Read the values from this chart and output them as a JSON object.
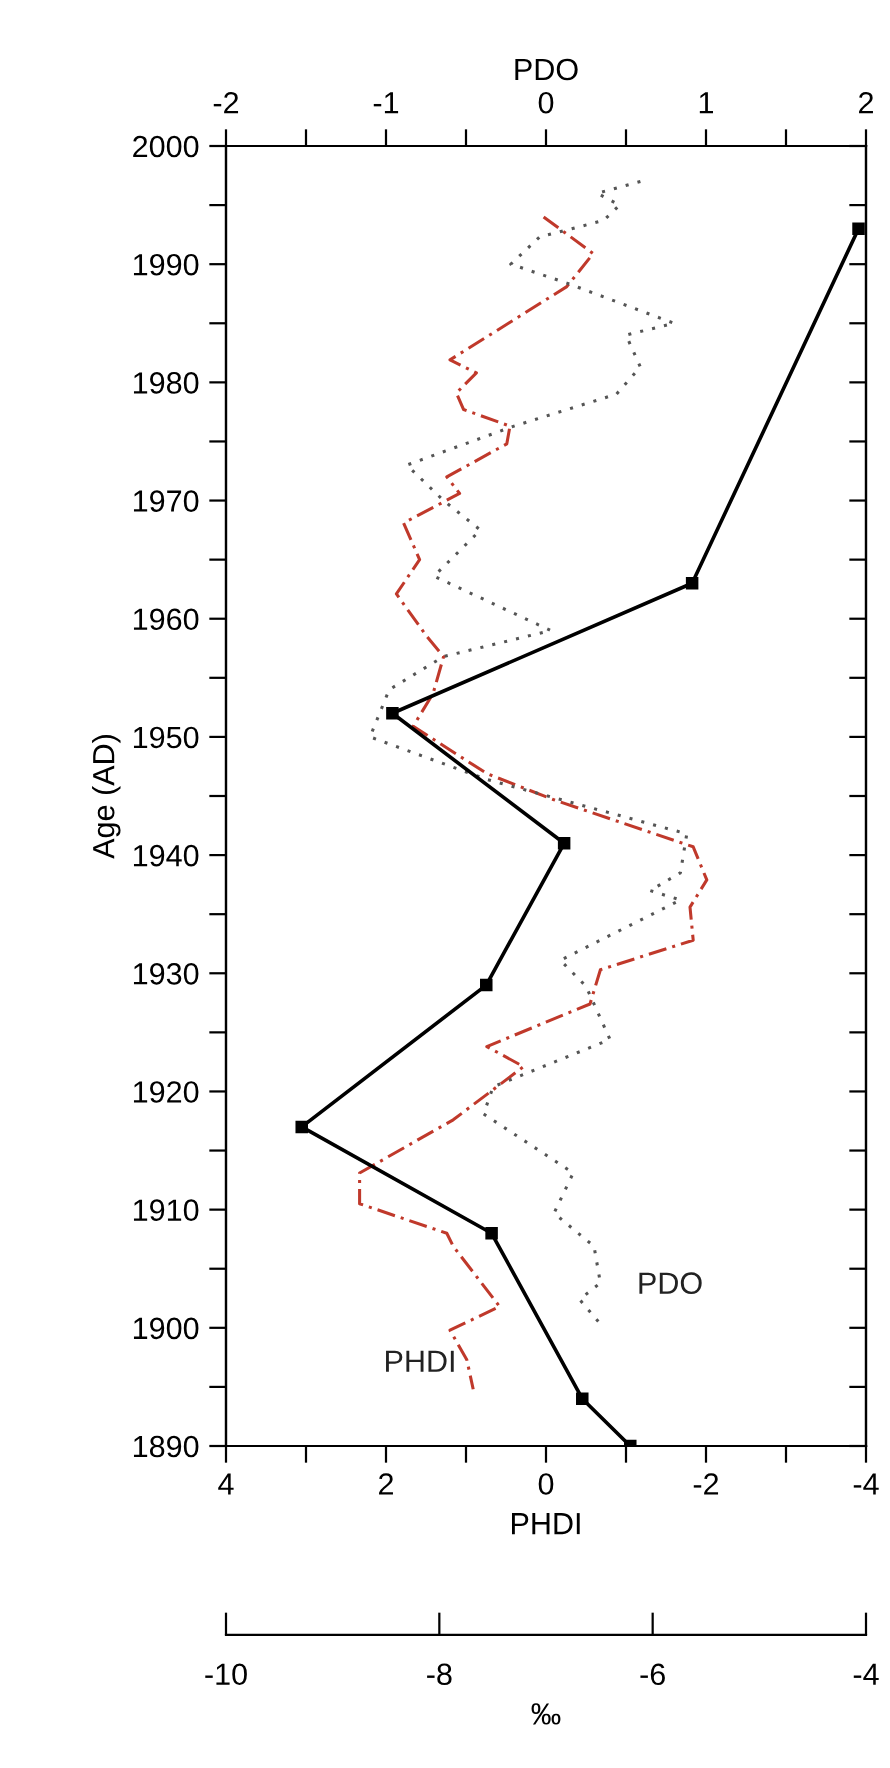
{
  "chart_data": [
    {
      "type": "line",
      "xlabel": "PHDI",
      "x2label": "PDO",
      "ylabel": "Age (AD)",
      "xlim": [
        4,
        -4
      ],
      "xticks": [
        4,
        {
          "value": 3,
          "label": null
        },
        2,
        {
          "value": 1,
          "label": null
        },
        0,
        {
          "value": -1,
          "label": null
        },
        -2,
        {
          "value": -3,
          "label": null
        },
        -4
      ],
      "x2lim": [
        -2,
        2
      ],
      "x2ticks": [
        -2,
        {
          "value": -1.5,
          "label": null
        },
        -1,
        {
          "value": -0.5,
          "label": null
        },
        0,
        {
          "value": 0.5,
          "label": null
        },
        1,
        {
          "value": 1.5,
          "label": null
        },
        2
      ],
      "ylim": [
        1890,
        2000
      ],
      "yticks": [
        1890,
        {
          "value": 1895,
          "label": null
        },
        1900,
        {
          "value": 1905,
          "label": null
        },
        1910,
        {
          "value": 1915,
          "label": null
        },
        1920,
        {
          "value": 1925,
          "label": null
        },
        1930,
        {
          "value": 1935,
          "label": null
        },
        1940,
        {
          "value": 1945,
          "label": null
        },
        1950,
        {
          "value": 1955,
          "label": null
        },
        1960,
        {
          "value": 1965,
          "label": null
        },
        1970,
        {
          "value": 1975,
          "label": null
        },
        1980,
        {
          "value": 1985,
          "label": null
        },
        1990,
        {
          "value": 1995,
          "label": null
        },
        2000
      ],
      "series": [
        {
          "name": "PDO",
          "axis": "x2",
          "color": "#555555",
          "marker": "none",
          "line_style": "dotted",
          "x": [
            0.59,
            0.32,
            0.46,
            0.36,
            -0.04,
            -0.22,
            0.13,
            0.8,
            0.5,
            0.59,
            0.44,
            -0.2,
            -0.87,
            -0.64,
            -0.41,
            -0.7,
            0.03,
            -0.64,
            -0.98,
            -1.1,
            -0.37,
            0.88,
            0.84,
            0.65,
            0.84,
            0.09,
            0.25,
            0.4,
            -0.33,
            -0.39,
            0.17,
            0.05,
            0.3,
            0.34,
            0.21,
            0.36
          ],
          "values": [
            1997,
            1996,
            1995,
            1993.7,
            1992.3,
            1990,
            1988.4,
            1985,
            1984,
            1981.3,
            1979,
            1976.3,
            1973,
            1970,
            1967.5,
            1963.6,
            1959,
            1956.8,
            1954,
            1950,
            1946.4,
            1941.8,
            1938.5,
            1937,
            1936.2,
            1931.1,
            1928.9,
            1924.4,
            1920.4,
            1918.1,
            1913.1,
            1909.7,
            1906.9,
            1903.8,
            1902.4,
            1900
          ]
        },
        {
          "name": "PHDI",
          "color": "#c0392b",
          "marker": "none",
          "line_style": "dashed",
          "x": [
            0.03,
            -0.59,
            -0.26,
            1.2,
            0.87,
            1.12,
            1.03,
            0.45,
            0.49,
            1.24,
            1.08,
            1.78,
            1.58,
            1.87,
            1.49,
            1.28,
            1.41,
            1.66,
            0.74,
            -0.09,
            -1.84,
            -2.01,
            -1.8,
            -1.84,
            -0.68,
            -0.55,
            0.74,
            0.28,
            1.16,
            2.33,
            2.33,
            1.24,
            1.16,
            0.58,
            1.2,
            0.99,
            0.91
          ],
          "values": [
            1994,
            1990.9,
            1988.1,
            1981.9,
            1980.8,
            1979.1,
            1977.7,
            1976.3,
            1974.8,
            1972,
            1970.6,
            1968.1,
            1965,
            1962.1,
            1958.5,
            1956.8,
            1953.7,
            1950.9,
            1946.9,
            1944.7,
            1940.7,
            1937.9,
            1935.6,
            1932.8,
            1930.3,
            1927.4,
            1923.8,
            1922.1,
            1917.6,
            1913.1,
            1910.5,
            1908,
            1906.9,
            1901.8,
            1899.8,
            1897.3,
            1894.8
          ]
        }
      ]
    },
    {
      "type": "line",
      "xlabel": "‰",
      "xlim": [
        -10,
        -4
      ],
      "xticks": [
        -10,
        -8,
        -6,
        -4
      ],
      "tick_labels": "x",
      "ylim": [
        1890,
        2000
      ],
      "series": [
        {
          "color": "#000000",
          "marker": "square",
          "line_style": "solid",
          "x": [
            -4.07,
            -5.63,
            -8.44,
            -6.83,
            -7.56,
            -9.29,
            -7.51,
            -6.66,
            -6.21
          ],
          "values": [
            1993,
            1963,
            1952,
            1941,
            1929,
            1917,
            1908,
            1894,
            1890
          ]
        }
      ]
    }
  ]
}
